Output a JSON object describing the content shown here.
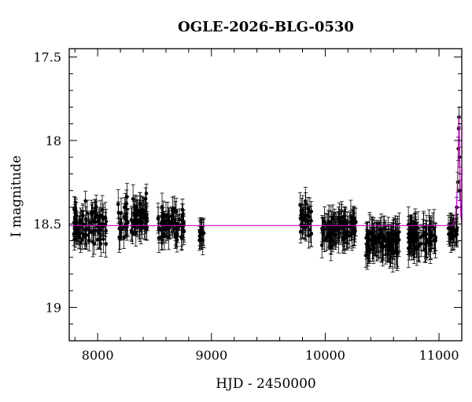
{
  "chart_data": {
    "type": "scatter",
    "title": "OGLE-2026-BLG-0530",
    "xlabel": "HJD - 2450000",
    "ylabel": "I magnitude",
    "xlim": [
      7750,
      11200
    ],
    "ylim": [
      19.2,
      17.45
    ],
    "y_inverted": true,
    "grid": false,
    "x_ticks": [
      8000,
      9000,
      10000,
      11000
    ],
    "x_tick_labels": [
      "8000",
      "9000",
      "10000",
      "11000"
    ],
    "y_ticks": [
      17.5,
      18,
      18.5,
      19
    ],
    "y_tick_labels": [
      "17.5",
      "18",
      "18.5",
      "19"
    ],
    "baseline_magnitude": 18.51,
    "colors": {
      "points": "#000000",
      "model": "#cc00cc"
    },
    "series": [
      {
        "marker": "point-with-errorbar",
        "segments": [
          {
            "x_range": [
              7790,
              8080
            ],
            "mag_mean": 18.52,
            "mag_scatter": 0.1,
            "err": 0.07
          },
          {
            "x_range": [
              8180,
              8440
            ],
            "mag_mean": 18.47,
            "mag_scatter": 0.1,
            "err": 0.07
          },
          {
            "x_range": [
              8530,
              8760
            ],
            "mag_mean": 18.52,
            "mag_scatter": 0.08,
            "err": 0.07
          },
          {
            "x_range": [
              8895,
              8935
            ],
            "mag_mean": 18.56,
            "mag_scatter": 0.06,
            "err": 0.07
          },
          {
            "x_range": [
              9780,
              9880
            ],
            "mag_mean": 18.47,
            "mag_scatter": 0.1,
            "err": 0.07
          },
          {
            "x_range": [
              9970,
              10270
            ],
            "mag_mean": 18.53,
            "mag_scatter": 0.07,
            "err": 0.08
          },
          {
            "x_range": [
              10350,
              10650
            ],
            "mag_mean": 18.6,
            "mag_scatter": 0.07,
            "err": 0.09
          },
          {
            "x_range": [
              10730,
              10970
            ],
            "mag_mean": 18.58,
            "mag_scatter": 0.07,
            "err": 0.09
          },
          {
            "x_range": [
              11080,
              11160
            ],
            "mag_mean": 18.55,
            "mag_scatter": 0.05,
            "err": 0.07
          }
        ],
        "peak_points": [
          {
            "x": 11155,
            "y": 18.4,
            "err": 0.06
          },
          {
            "x": 11165,
            "y": 18.25,
            "err": 0.06
          },
          {
            "x": 11170,
            "y": 18.05,
            "err": 0.07
          },
          {
            "x": 11173,
            "y": 17.93,
            "err": 0.07
          },
          {
            "x": 11176,
            "y": 17.86,
            "err": 0.06
          },
          {
            "x": 11179,
            "y": 18.1,
            "err": 0.06
          },
          {
            "x": 11182,
            "y": 18.3,
            "err": 0.06
          }
        ]
      },
      {
        "marker": "model-line",
        "points": [
          {
            "x": 7750,
            "y": 18.51
          },
          {
            "x": 11120,
            "y": 18.51
          },
          {
            "x": 11140,
            "y": 18.47
          },
          {
            "x": 11155,
            "y": 18.38
          },
          {
            "x": 11165,
            "y": 18.2
          },
          {
            "x": 11172,
            "y": 17.98
          },
          {
            "x": 11176,
            "y": 17.85
          },
          {
            "x": 11180,
            "y": 18.0
          },
          {
            "x": 11185,
            "y": 18.25
          },
          {
            "x": 11192,
            "y": 18.45
          },
          {
            "x": 11200,
            "y": 18.5
          }
        ]
      }
    ]
  }
}
